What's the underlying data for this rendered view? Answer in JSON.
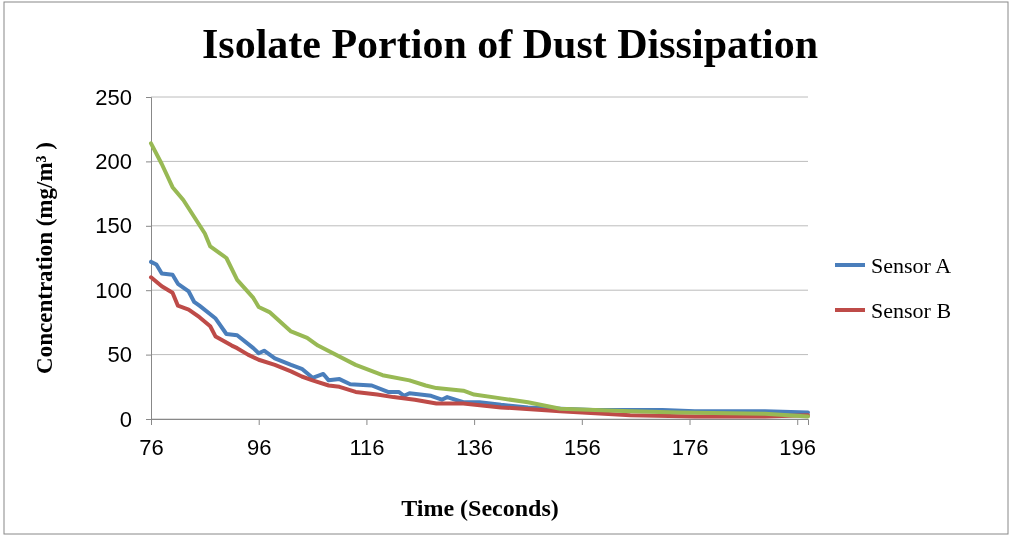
{
  "chart_data": {
    "type": "line",
    "title": "Isolate Portion of Dust Dissipation",
    "xlabel": "Time (Seconds)",
    "ylabel": "Concentration (mg/m³ )",
    "xlim": [
      76,
      198
    ],
    "xticks": [
      76,
      96,
      116,
      136,
      156,
      176,
      196
    ],
    "ylim": [
      0,
      250
    ],
    "yticks": [
      0,
      50,
      100,
      150,
      200,
      250
    ],
    "grid": "y",
    "legend": "right",
    "marker": "none",
    "line_style": "solid",
    "series": [
      {
        "name": "Sensor A",
        "color": "#4a7ebb",
        "x": [
          76,
          77,
          78,
          80,
          81,
          83,
          84,
          85,
          88,
          90,
          92,
          95,
          96,
          97,
          99,
          102,
          104,
          106,
          108,
          109,
          111,
          113,
          117,
          120,
          122,
          123,
          124,
          128,
          130,
          131,
          134,
          137,
          141,
          146,
          158,
          171,
          177,
          190,
          198
        ],
        "values": [
          122,
          120,
          113,
          112,
          105,
          99,
          91,
          88,
          78,
          66,
          65,
          55,
          51,
          53,
          47,
          42,
          39,
          32,
          35,
          30,
          31,
          27,
          26,
          21,
          21,
          18,
          20,
          18,
          15,
          17,
          13,
          13,
          11,
          9,
          7,
          7,
          6,
          6,
          5
        ]
      },
      {
        "name": "Sensor B",
        "color": "#be4b48",
        "x": [
          76,
          78,
          80,
          81,
          83,
          85,
          87,
          88,
          91,
          92,
          94,
          96,
          99,
          102,
          104,
          106,
          109,
          111,
          114,
          118,
          121,
          125,
          129,
          134,
          141,
          152,
          165,
          177,
          190,
          198
        ],
        "values": [
          110,
          103,
          98,
          88,
          85,
          79,
          72,
          64,
          57,
          55,
          50,
          46,
          42,
          37,
          33,
          30,
          26,
          25,
          21,
          19,
          17,
          15,
          12,
          12,
          9,
          6,
          3,
          2,
          2,
          3
        ]
      },
      {
        "color": "#98b954",
        "x": [
          76,
          78,
          80,
          82,
          84,
          86,
          87,
          90,
          92,
          95,
          96,
          98,
          102,
          105,
          107,
          114,
          119,
          124,
          127,
          129,
          134,
          136,
          141,
          146,
          152,
          165,
          174,
          190,
          198
        ],
        "values": [
          214,
          198,
          180,
          170,
          157,
          144,
          134,
          125,
          108,
          94,
          87,
          83,
          68,
          63,
          57,
          42,
          34,
          30,
          26,
          24,
          22,
          19,
          16,
          13,
          8,
          6,
          5,
          4,
          2
        ]
      }
    ]
  }
}
